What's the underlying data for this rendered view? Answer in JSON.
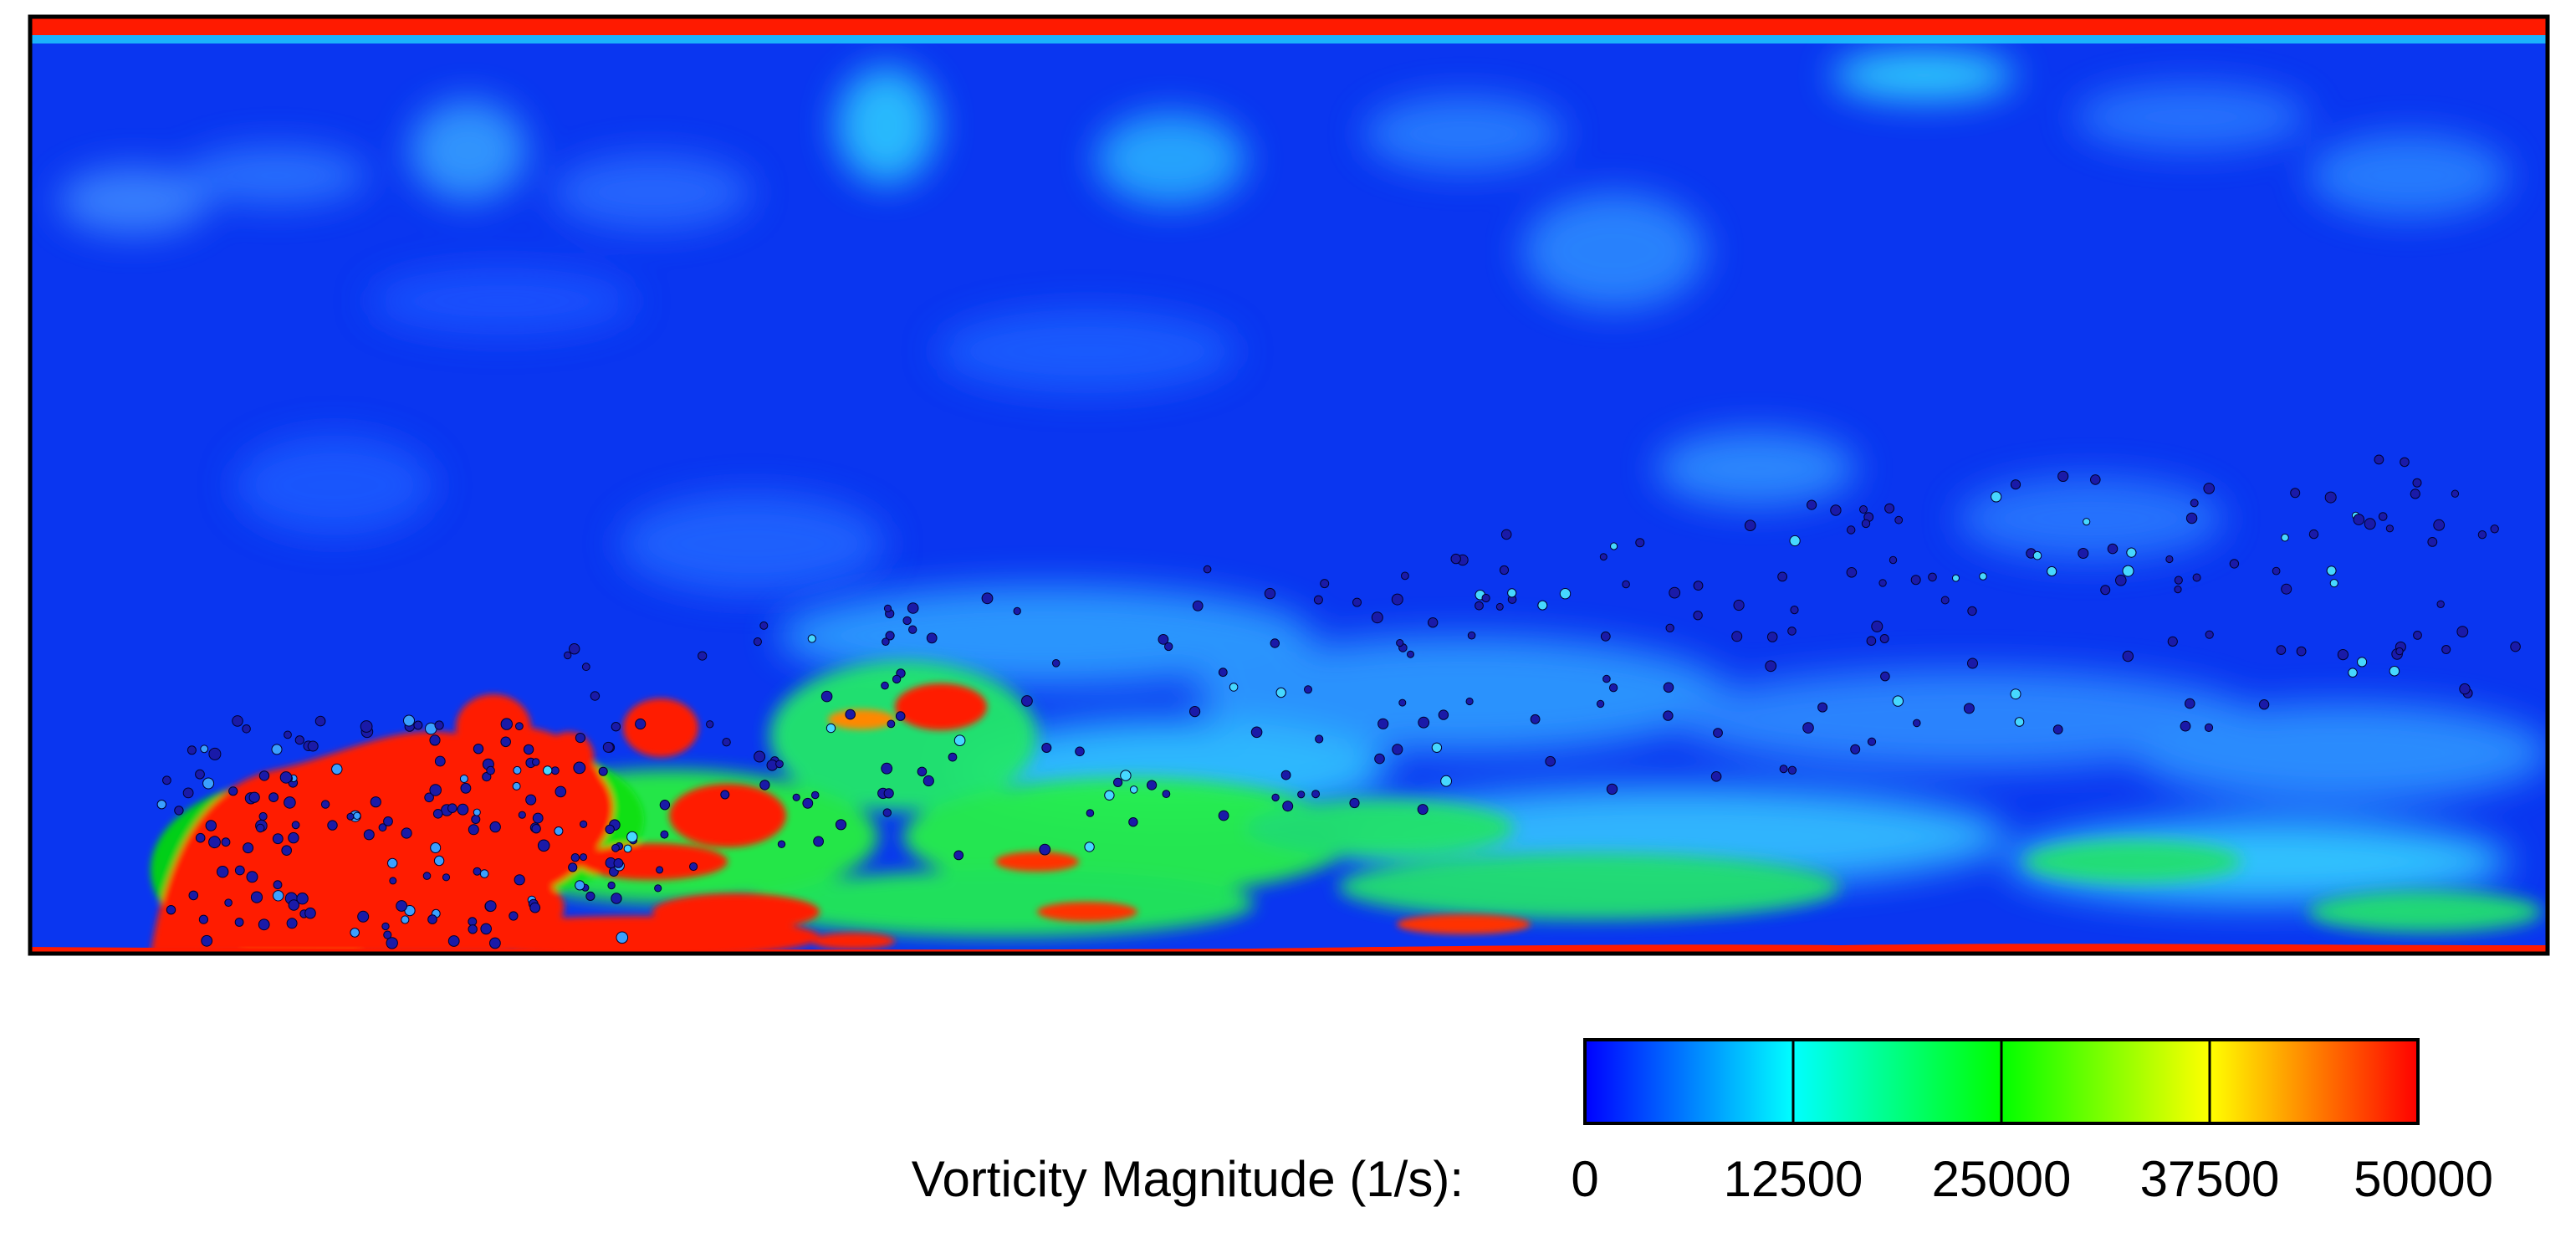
{
  "chart_data": {
    "type": "heatmap",
    "title": "",
    "colorbar": {
      "label": "Vorticity Magnitude (1/s):",
      "min": 0,
      "max": 50000,
      "ticks": [
        0,
        12500,
        25000,
        37500,
        50000
      ],
      "tick_labels": [
        "0",
        "12500",
        "25000",
        "37500",
        "50000"
      ],
      "colormap": [
        "#0000ff",
        "#00ffff",
        "#00ff00",
        "#ffff00",
        "#ff0000"
      ],
      "placement": "bottom-right"
    },
    "field": {
      "description_visible": false,
      "background_level": 6000,
      "top_wall_level": 50000,
      "bottom_wall_level": 50000,
      "particle_color": "#1a1aa8"
    }
  }
}
